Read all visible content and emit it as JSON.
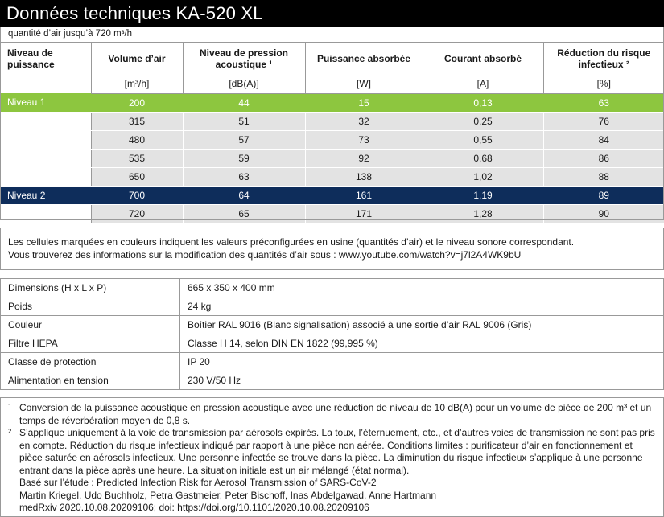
{
  "title": "Données techniques KA-520 XL",
  "subtitle": "quantité d’air jusqu’à 720 m³/h",
  "table": {
    "headers": [
      "Niveau de puissance",
      "Volume d’air",
      "Niveau de pression acoustique ¹",
      "Puissance absorbée",
      "Courant absorbé",
      "Réduction du risque infectieux ²"
    ],
    "units": [
      "",
      "[m³/h]",
      "[dB(A)]",
      "[W]",
      "[A]",
      "[%]"
    ],
    "rows": [
      [
        "Niveau 1",
        "200",
        "44",
        "15",
        "0,13",
        "63"
      ],
      [
        "",
        "315",
        "51",
        "32",
        "0,25",
        "76"
      ],
      [
        "",
        "480",
        "57",
        "73",
        "0,55",
        "84"
      ],
      [
        "",
        "535",
        "59",
        "92",
        "0,68",
        "86"
      ],
      [
        "",
        "650",
        "63",
        "138",
        "1,02",
        "88"
      ],
      [
        "Niveau 2",
        "700",
        "64",
        "161",
        "1,19",
        "89"
      ],
      [
        "",
        "720",
        "65",
        "171",
        "1,28",
        "90"
      ]
    ],
    "highlight_colors": {
      "niveau1": "#8dc63f",
      "niveau2": "#0e2d5b"
    }
  },
  "note": {
    "line1": "Les cellules marquées en couleurs indiquent les valeurs préconfigurées en usine (quantités d’air) et le niveau sonore correspondant.",
    "line2": "Vous trouverez des informations sur la modification des quantités d’air sous : www.youtube.com/watch?v=j7l2A4WK9bU"
  },
  "specs": [
    {
      "label": "Dimensions (H x L x P)",
      "value": "665 x 350 x 400 mm"
    },
    {
      "label": "Poids",
      "value": "24 kg"
    },
    {
      "label": "Couleur",
      "value": "Boîtier RAL 9016 (Blanc signalisation) associé à une sortie d’air RAL 9006 (Gris)"
    },
    {
      "label": "Filtre HEPA",
      "value": "Classe H 14, selon DIN EN 1822 (99,995 %)"
    },
    {
      "label": "Classe de protection",
      "value": "IP 20"
    },
    {
      "label": "Alimentation en tension",
      "value": "230 V/50 Hz"
    }
  ],
  "footnotes": {
    "fn1_mark": "1",
    "fn1": "Conversion de la puissance acoustique en pression acoustique avec une réduction de niveau de 10 dB(A) pour un volume de pièce de 200 m³ et un temps de réverbération moyen de 0,8 s.",
    "fn2_mark": "2",
    "fn2": "S’applique uniquement à la voie de transmission par aérosols expirés. La toux, l’éternuement, etc., et d’autres voies de transmission ne sont pas pris en compte. Réduction du risque infectieux indiqué par rapport à une pièce non aérée. Conditions limites : purificateur d’air en fonctionnement et pièce saturée en aérosols infectieux. Une personne infectée se trouve dans la pièce. La diminution du risque infectieux s’applique à une personne entrant dans la pièce après une heure. La situation initiale est un air mélangé (état normal).",
    "ref1": "Basé sur l’étude : Predicted Infection Risk for Aerosol Transmission of SARS-CoV-2",
    "ref2": "Martin Kriegel, Udo Buchholz, Petra Gastmeier, Peter Bischoff, Inas Abdelgawad, Anne Hartmann",
    "ref3": "medRxiv 2020.10.08.20209106; doi: https://doi.org/10.1101/2020.10.08.20209106"
  }
}
